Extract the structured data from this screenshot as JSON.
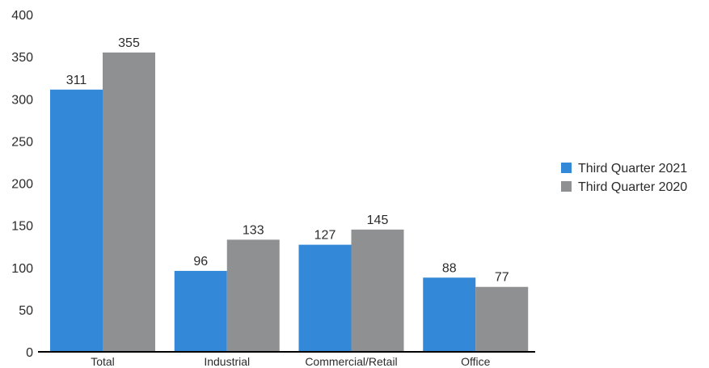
{
  "chart_data": {
    "type": "bar",
    "categories": [
      "Total",
      "Industrial",
      "Commercial/Retail",
      "Office"
    ],
    "series": [
      {
        "name": "Third Quarter 2021",
        "values": [
          311,
          96,
          127,
          88
        ],
        "color": "#3488D8"
      },
      {
        "name": "Third Quarter 2020",
        "values": [
          355,
          133,
          145,
          77
        ],
        "color": "#8E9091"
      }
    ],
    "ylim": [
      0,
      400
    ],
    "yticks": [
      0,
      50,
      100,
      150,
      200,
      250,
      300,
      350,
      400
    ],
    "grid": false,
    "legend_position": "right",
    "data_labels": true
  }
}
